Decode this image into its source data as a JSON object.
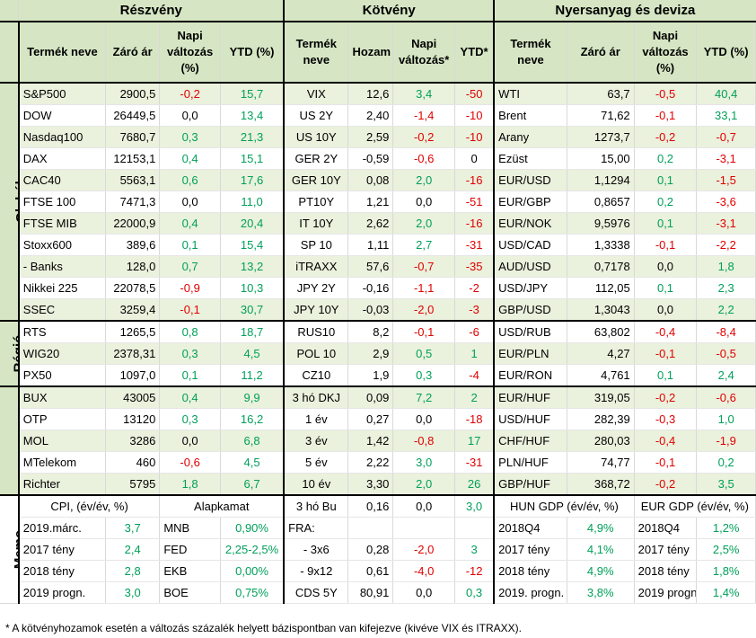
{
  "headers": {
    "stocks": "Részvény",
    "bonds": "Kötvény",
    "commod": "Nyersanyag és deviza"
  },
  "subheaders": {
    "s_name": "Termék neve",
    "s_close": "Záró ár",
    "s_daily": "Napi változás (%)",
    "s_ytd": "YTD (%)",
    "b_name": "Termék neve",
    "b_yield": "Hozam",
    "b_daily": "Napi változás*",
    "b_ytd": "YTD*",
    "c_name": "Termék neve",
    "c_close": "Záró ár",
    "c_daily": "Napi változás (%)",
    "c_ytd": "YTD (%)"
  },
  "groups": {
    "global": "Globál",
    "region": "Régió",
    "hungary": "Magyar",
    "memo": "Memo"
  },
  "rows": [
    {
      "s": [
        "S&P500",
        "2900,5",
        "-0,2",
        "15,7"
      ],
      "b": [
        "VIX",
        "12,6",
        "3,4",
        "-50"
      ],
      "c": [
        "WTI",
        "63,7",
        "-0,5",
        "40,4"
      ]
    },
    {
      "s": [
        "DOW",
        "26449,5",
        "0,0",
        "13,4"
      ],
      "b": [
        "US 2Y",
        "2,40",
        "-1,4",
        "-10"
      ],
      "c": [
        "Brent",
        "71,62",
        "-0,1",
        "33,1"
      ]
    },
    {
      "s": [
        "Nasdaq100",
        "7680,7",
        "0,3",
        "21,3"
      ],
      "b": [
        "US 10Y",
        "2,59",
        "-0,2",
        "-10"
      ],
      "c": [
        "Arany",
        "1273,7",
        "-0,2",
        "-0,7"
      ]
    },
    {
      "s": [
        "DAX",
        "12153,1",
        "0,4",
        "15,1"
      ],
      "b": [
        "GER 2Y",
        "-0,59",
        "-0,6",
        "0"
      ],
      "c": [
        "Ezüst",
        "15,00",
        "0,2",
        "-3,1"
      ]
    },
    {
      "s": [
        "CAC40",
        "5563,1",
        "0,6",
        "17,6"
      ],
      "b": [
        "GER 10Y",
        "0,08",
        "2,0",
        "-16"
      ],
      "c": [
        "EUR/USD",
        "1,1294",
        "0,1",
        "-1,5"
      ]
    },
    {
      "s": [
        "FTSE 100",
        "7471,3",
        "0,0",
        "11,0"
      ],
      "b": [
        "PT10Y",
        "1,21",
        "0,0",
        "-51"
      ],
      "c": [
        "EUR/GBP",
        "0,8657",
        "0,2",
        "-3,6"
      ]
    },
    {
      "s": [
        "FTSE MIB",
        "22000,9",
        "0,4",
        "20,4"
      ],
      "b": [
        "IT 10Y",
        "2,62",
        "2,0",
        "-16"
      ],
      "c": [
        "EUR/NOK",
        "9,5976",
        "0,1",
        "-3,1"
      ]
    },
    {
      "s": [
        "Stoxx600",
        "389,6",
        "0,1",
        "15,4"
      ],
      "b": [
        "SP 10",
        "1,11",
        "2,7",
        "-31"
      ],
      "c": [
        "USD/CAD",
        "1,3338",
        "-0,1",
        "-2,2"
      ]
    },
    {
      "s": [
        "- Banks",
        "128,0",
        "0,7",
        "13,2"
      ],
      "b": [
        "iTRAXX",
        "57,6",
        "-0,7",
        "-35"
      ],
      "c": [
        "AUD/USD",
        "0,7178",
        "0,0",
        "1,8"
      ]
    },
    {
      "s": [
        "Nikkei 225",
        "22078,5",
        "-0,9",
        "10,3"
      ],
      "b": [
        "JPY 2Y",
        "-0,16",
        "-1,1",
        "-2"
      ],
      "c": [
        "USD/JPY",
        "112,05",
        "0,1",
        "2,3"
      ]
    },
    {
      "s": [
        "SSEC",
        "3259,4",
        "-0,1",
        "30,7"
      ],
      "b": [
        "JPY 10Y",
        "-0,03",
        "-2,0",
        "-3"
      ],
      "c": [
        "GBP/USD",
        "1,3043",
        "0,0",
        "2,2"
      ]
    },
    {
      "s": [
        "RTS",
        "1265,5",
        "0,8",
        "18,7"
      ],
      "b": [
        "RUS10",
        "8,2",
        "-0,1",
        "-6"
      ],
      "c": [
        "USD/RUB",
        "63,802",
        "-0,4",
        "-8,4"
      ]
    },
    {
      "s": [
        "WIG20",
        "2378,31",
        "0,3",
        "4,5"
      ],
      "b": [
        "POL 10",
        "2,9",
        "0,5",
        "1"
      ],
      "c": [
        "EUR/PLN",
        "4,27",
        "-0,1",
        "-0,5"
      ]
    },
    {
      "s": [
        "PX50",
        "1097,0",
        "0,1",
        "11,2"
      ],
      "b": [
        "CZ10",
        "1,9",
        "0,3",
        "-4"
      ],
      "c": [
        "EUR/RON",
        "4,761",
        "0,1",
        "2,4"
      ]
    },
    {
      "s": [
        "BUX",
        "43005",
        "0,4",
        "9,9"
      ],
      "b": [
        "3 hó DKJ",
        "0,09",
        "7,2",
        "2"
      ],
      "c": [
        "EUR/HUF",
        "319,05",
        "-0,2",
        "-0,6"
      ]
    },
    {
      "s": [
        "OTP",
        "13120",
        "0,3",
        "16,2"
      ],
      "b": [
        "1 év",
        "0,27",
        "0,0",
        "-18"
      ],
      "c": [
        "USD/HUF",
        "282,39",
        "-0,3",
        "1,0"
      ]
    },
    {
      "s": [
        "MOL",
        "3286",
        "0,0",
        "6,8"
      ],
      "b": [
        "3 év",
        "1,42",
        "-0,8",
        "17"
      ],
      "c": [
        "CHF/HUF",
        "280,03",
        "-0,4",
        "-1,9"
      ]
    },
    {
      "s": [
        "MTelekom",
        "460",
        "-0,6",
        "4,5"
      ],
      "b": [
        "5 év",
        "2,22",
        "3,0",
        "-31"
      ],
      "c": [
        "PLN/HUF",
        "74,77",
        "-0,1",
        "0,2"
      ]
    },
    {
      "s": [
        "Richter",
        "5795",
        "1,8",
        "6,7"
      ],
      "b": [
        "10 év",
        "3,30",
        "2,0",
        "26"
      ],
      "c": [
        "GBP/HUF",
        "368,72",
        "-0,2",
        "3,5"
      ]
    }
  ],
  "memo": {
    "cpi_head": "CPI, (év/év, %)",
    "rate_head": "Alapkamat",
    "hun_gdp_head": "HUN GDP (év/év, %)",
    "eur_gdp_head": "EUR GDP (év/év, %)",
    "rows": [
      {
        "cpi_l": "",
        "cpi_v": "",
        "rate_l": "",
        "rate_v": "",
        "b": [
          "3 hó Bu",
          "0,16",
          "0,0",
          "3,0"
        ],
        "h_l": "",
        "h_v": "",
        "e_l": "",
        "e_v": ""
      },
      {
        "cpi_l": "2019.márc.",
        "cpi_v": "3,7",
        "rate_l": "MNB",
        "rate_v": "0,90%",
        "b": [
          "FRA:",
          "",
          "",
          ""
        ],
        "h_l": "2018Q4",
        "h_v": "4,9%",
        "e_l": "2018Q4",
        "e_v": "1,2%"
      },
      {
        "cpi_l": "2017 tény",
        "cpi_v": "2,4",
        "rate_l": "FED",
        "rate_v": "2,25-2,5%",
        "b": [
          "- 3x6",
          "0,28",
          "-2,0",
          "3"
        ],
        "h_l": "2017 tény",
        "h_v": "4,1%",
        "e_l": "2017 tény",
        "e_v": "2,5%"
      },
      {
        "cpi_l": "2018 tény",
        "cpi_v": "2,8",
        "rate_l": "EKB",
        "rate_v": "0,00%",
        "b": [
          "- 9x12",
          "0,61",
          "-4,0",
          "-12"
        ],
        "h_l": "2018 tény",
        "h_v": "4,9%",
        "e_l": "2018 tény",
        "e_v": "1,8%"
      },
      {
        "cpi_l": "2019 progn.",
        "cpi_v": "3,0",
        "rate_l": "BOE",
        "rate_v": "0,75%",
        "b": [
          "CDS 5Y",
          "80,91",
          "0,0",
          "0,3"
        ],
        "h_l": "2019. progn.",
        "h_v": "3,8%",
        "e_l": "2019 progn.",
        "e_v": "1,4%"
      }
    ]
  },
  "footnote": "* A kötvényhozamok esetén a változás százalék helyett bázispontban van kifejezve (kivéve VIX és ITRAXX).",
  "colors": {
    "header_bg": "#d6e6c4",
    "band": "#eaf1dd",
    "positive": "#00a05a",
    "negative": "#e00000"
  }
}
